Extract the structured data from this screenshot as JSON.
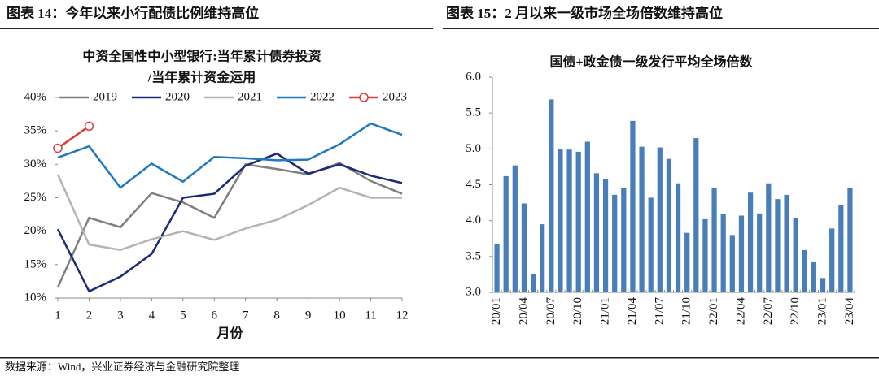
{
  "header": {
    "left": "图表 14：今年以来小行配债比例维持高位",
    "right": "图表 15：2 月以来一级市场全场倍数维持高位"
  },
  "source": "数据来源：Wind，兴业证券经济与金融研究院整理",
  "chart_data": [
    {
      "type": "line",
      "title": [
        "中资全国性中小型银行:当年累计债券投资",
        "/当年累计资金运用"
      ],
      "x_label": "月份",
      "categories": [
        "1",
        "2",
        "3",
        "4",
        "5",
        "6",
        "7",
        "8",
        "9",
        "10",
        "11",
        "12"
      ],
      "series": [
        {
          "name": "2019",
          "color": "#7f7f7f",
          "values": [
            11.6,
            22.0,
            20.6,
            25.7,
            24.3,
            22.0,
            30.0,
            29.3,
            28.5,
            30.2,
            27.5,
            25.6
          ]
        },
        {
          "name": "2020",
          "color": "#1c2a78",
          "values": [
            20.3,
            11.0,
            13.2,
            16.6,
            25.0,
            25.6,
            29.8,
            31.6,
            28.6,
            30.0,
            28.3,
            27.2
          ]
        },
        {
          "name": "2021",
          "color": "#b4b4b4",
          "values": [
            28.5,
            18.0,
            17.2,
            18.8,
            20.0,
            18.7,
            20.4,
            21.7,
            23.9,
            26.5,
            25.0,
            25.0
          ]
        },
        {
          "name": "2022",
          "color": "#1f78c4",
          "values": [
            31.0,
            32.7,
            26.5,
            30.1,
            27.4,
            31.1,
            30.9,
            30.6,
            30.7,
            33.0,
            36.1,
            34.4
          ]
        },
        {
          "name": "2023",
          "color": "#e03a3a",
          "marker": "circle",
          "values": [
            32.4,
            35.7,
            null,
            null,
            null,
            null,
            null,
            null,
            null,
            null,
            null,
            null
          ]
        }
      ],
      "ylim": [
        10,
        40
      ],
      "yticks": [
        {
          "value": 10,
          "label": "10%"
        },
        {
          "value": 15,
          "label": "15%"
        },
        {
          "value": 20,
          "label": "20%"
        },
        {
          "value": 25,
          "label": "25%"
        },
        {
          "value": 30,
          "label": "30%"
        },
        {
          "value": 35,
          "label": "35%"
        },
        {
          "value": 40,
          "label": "40%"
        }
      ],
      "legend": "top"
    },
    {
      "type": "bar",
      "title": "国债+政金债一级发行平均全场倍数",
      "color": "#4a7ebb",
      "categories": [
        "20/01",
        null,
        null,
        "20/04",
        null,
        null,
        "20/07",
        null,
        null,
        "20/10",
        null,
        null,
        "21/01",
        null,
        null,
        "21/04",
        null,
        null,
        "21/07",
        null,
        null,
        "21/10",
        null,
        null,
        "22/01",
        null,
        null,
        "22/04",
        null,
        null,
        "22/07",
        null,
        null,
        "22/10",
        null,
        null,
        "23/01",
        null,
        null,
        "23/04"
      ],
      "values": [
        3.68,
        4.62,
        4.77,
        4.24,
        3.25,
        3.95,
        5.69,
        5.0,
        4.99,
        4.96,
        5.1,
        4.66,
        4.58,
        4.36,
        4.46,
        5.39,
        5.03,
        4.32,
        5.02,
        4.86,
        4.52,
        3.83,
        5.15,
        4.02,
        4.46,
        4.09,
        3.8,
        4.07,
        4.39,
        4.1,
        4.52,
        4.3,
        4.36,
        4.04,
        3.59,
        3.42,
        3.2,
        3.89,
        4.22,
        4.45
      ],
      "ylim": [
        3.0,
        6.0
      ],
      "yticks": [
        {
          "value": 3,
          "label": "3.0"
        },
        {
          "value": 3.5,
          "label": "3.5"
        },
        {
          "value": 4,
          "label": "4.0"
        },
        {
          "value": 4.5,
          "label": "4.5"
        },
        {
          "value": 5,
          "label": "5.0"
        },
        {
          "value": 5.5,
          "label": "5.5"
        },
        {
          "value": 6,
          "label": "6.0"
        }
      ]
    }
  ]
}
